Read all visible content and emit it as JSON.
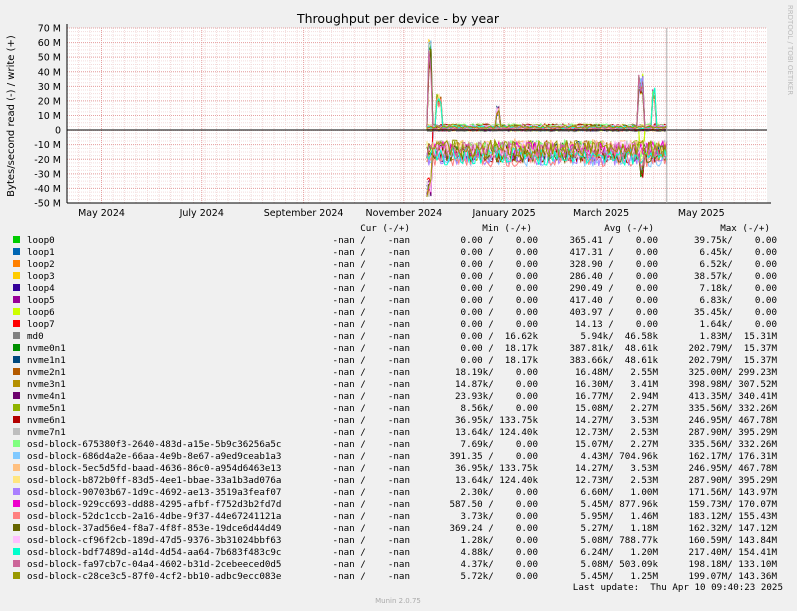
{
  "chart_data": {
    "type": "line",
    "title": "Throughput per device - by year",
    "ylabel": "Bytes/second read (-) / write (+)",
    "side_label": "RRDTOOL / TOBI OETIKER",
    "footer": "Munin 2.0.75",
    "last_update": "Last update:  Thu Apr 10 09:40:23 2025",
    "ylim": [
      -50000000,
      70000000
    ],
    "y_ticks": [
      {
        "value": 70000000,
        "label": "70 M"
      },
      {
        "value": 60000000,
        "label": "60 M"
      },
      {
        "value": 50000000,
        "label": "50 M"
      },
      {
        "value": 40000000,
        "label": "40 M"
      },
      {
        "value": 30000000,
        "label": "30 M"
      },
      {
        "value": 20000000,
        "label": "20 M"
      },
      {
        "value": 10000000,
        "label": "10 M"
      },
      {
        "value": 0,
        "label": "0"
      },
      {
        "value": -10000000,
        "label": "-10 M"
      },
      {
        "value": -20000000,
        "label": "-20 M"
      },
      {
        "value": -30000000,
        "label": "-30 M"
      },
      {
        "value": -40000000,
        "label": "-40 M"
      },
      {
        "value": -50000000,
        "label": "-50 M"
      }
    ],
    "x_range": [
      "2024-04-10",
      "2025-06-10"
    ],
    "x_ticks": [
      {
        "value": "2024-05-01",
        "label": "May 2024"
      },
      {
        "value": "2024-07-01",
        "label": "July 2024"
      },
      {
        "value": "2024-09-01",
        "label": "September 2024"
      },
      {
        "value": "2024-11-01",
        "label": "November 2024"
      },
      {
        "value": "2025-01-01",
        "label": "January 2025"
      },
      {
        "value": "2025-03-01",
        "label": "March 2025"
      },
      {
        "value": "2025-05-01",
        "label": "May 2025"
      }
    ],
    "data_start": "2024-11-15",
    "data_end": "2025-04-10",
    "spikes": [
      {
        "date": "2024-11-17",
        "value": 62000000
      },
      {
        "date": "2024-11-22",
        "value": 25000000
      },
      {
        "date": "2024-12-28",
        "value": 17000000
      },
      {
        "date": "2025-03-25",
        "value": 40000000
      },
      {
        "date": "2025-04-02",
        "value": 30000000
      },
      {
        "date": "2024-11-16",
        "value": -46000000
      },
      {
        "date": "2025-03-26",
        "value": -33000000
      }
    ],
    "columns": {
      "cur": "Cur (-/+)",
      "min": "Min (-/+)",
      "avg": "Avg (-/+)",
      "max": "Max (-/+)"
    },
    "series": [
      {
        "name": "loop0",
        "color": "#00cc00",
        "cur": "-nan /    -nan",
        "min": "0.00 /    0.00",
        "avg": "365.41 /    0.00",
        "max": "39.75k/    0.00"
      },
      {
        "name": "loop1",
        "color": "#0066b3",
        "cur": "-nan /    -nan",
        "min": "0.00 /    0.00",
        "avg": "417.31 /    0.00",
        "max": "6.45k/    0.00"
      },
      {
        "name": "loop2",
        "color": "#ff8000",
        "cur": "-nan /    -nan",
        "min": "0.00 /    0.00",
        "avg": "328.90 /    0.00",
        "max": "6.52k/    0.00"
      },
      {
        "name": "loop3",
        "color": "#ffcc00",
        "cur": "-nan /    -nan",
        "min": "0.00 /    0.00",
        "avg": "286.40 /    0.00",
        "max": "38.57k/    0.00"
      },
      {
        "name": "loop4",
        "color": "#330099",
        "cur": "-nan /    -nan",
        "min": "0.00 /    0.00",
        "avg": "290.49 /    0.00",
        "max": "7.18k/    0.00"
      },
      {
        "name": "loop5",
        "color": "#990099",
        "cur": "-nan /    -nan",
        "min": "0.00 /    0.00",
        "avg": "417.40 /    0.00",
        "max": "6.83k/    0.00"
      },
      {
        "name": "loop6",
        "color": "#ccff00",
        "cur": "-nan /    -nan",
        "min": "0.00 /    0.00",
        "avg": "403.97 /    0.00",
        "max": "35.45k/    0.00"
      },
      {
        "name": "loop7",
        "color": "#ff0000",
        "cur": "-nan /    -nan",
        "min": "0.00 /    0.00",
        "avg": "14.13 /    0.00",
        "max": "1.64k/    0.00"
      },
      {
        "name": "md0",
        "color": "#808080",
        "cur": "-nan /    -nan",
        "min": "0.00 /  16.62k",
        "avg": "5.94k/  46.58k",
        "max": "1.83M/  15.31M"
      },
      {
        "name": "nvme0n1",
        "color": "#008f00",
        "cur": "-nan /    -nan",
        "min": "0.00 /  18.17k",
        "avg": "387.81k/  48.61k",
        "max": "202.79M/  15.37M"
      },
      {
        "name": "nvme1n1",
        "color": "#00487d",
        "cur": "-nan /    -nan",
        "min": "0.00 /  18.17k",
        "avg": "383.66k/  48.61k",
        "max": "202.79M/  15.37M"
      },
      {
        "name": "nvme2n1",
        "color": "#b35a00",
        "cur": "-nan /    -nan",
        "min": "18.19k/    0.00",
        "avg": "16.48M/   2.55M",
        "max": "325.00M/ 299.23M"
      },
      {
        "name": "nvme3n1",
        "color": "#b38f00",
        "cur": "-nan /    -nan",
        "min": "14.87k/    0.00",
        "avg": "16.30M/   3.41M",
        "max": "398.98M/ 307.52M"
      },
      {
        "name": "nvme4n1",
        "color": "#6b006b",
        "cur": "-nan /    -nan",
        "min": "23.93k/    0.00",
        "avg": "16.77M/   2.94M",
        "max": "413.35M/ 340.41M"
      },
      {
        "name": "nvme5n1",
        "color": "#8fb300",
        "cur": "-nan /    -nan",
        "min": "8.56k/    0.00",
        "avg": "15.08M/   2.27M",
        "max": "335.56M/ 332.26M"
      },
      {
        "name": "nvme6n1",
        "color": "#b30000",
        "cur": "-nan /    -nan",
        "min": "36.95k/ 133.75k",
        "avg": "14.27M/   3.53M",
        "max": "246.95M/ 467.78M"
      },
      {
        "name": "nvme7n1",
        "color": "#bebebe",
        "cur": "-nan /    -nan",
        "min": "13.64k/ 124.40k",
        "avg": "12.73M/   2.53M",
        "max": "287.90M/ 395.29M"
      },
      {
        "name": "osd-block-675380f3-2640-483d-a15e-5b9c36256a5c",
        "color": "#80ff80",
        "cur": "-nan /    -nan",
        "min": "7.69k/    0.00",
        "avg": "15.07M/   2.27M",
        "max": "335.56M/ 332.26M"
      },
      {
        "name": "osd-block-686d4a2e-66aa-4e9b-8e67-a9ed9ceab1a3",
        "color": "#80c9ff",
        "cur": "-nan /    -nan",
        "min": "391.35 /    0.00",
        "avg": "4.43M/ 704.96k",
        "max": "162.17M/ 176.31M"
      },
      {
        "name": "osd-block-5ec5d5fd-baad-4636-86c0-a954d6463e13",
        "color": "#ffc080",
        "cur": "-nan /    -nan",
        "min": "36.95k/ 133.75k",
        "avg": "14.27M/   3.53M",
        "max": "246.95M/ 467.78M"
      },
      {
        "name": "osd-block-b872b0ff-83d5-4ee1-bbae-33a1b3ad076a",
        "color": "#ffe680",
        "cur": "-nan /    -nan",
        "min": "13.64k/ 124.40k",
        "avg": "12.73M/   2.53M",
        "max": "287.90M/ 395.29M"
      },
      {
        "name": "osd-block-90703b67-1d9c-4692-ae13-3519a3feaf07",
        "color": "#aa80ff",
        "cur": "-nan /    -nan",
        "min": "2.30k/    0.00",
        "avg": "6.60M/   1.00M",
        "max": "171.56M/ 143.97M"
      },
      {
        "name": "osd-block-929cc693-dd88-4295-afbf-f752d3b2fd7d",
        "color": "#ee00cc",
        "cur": "-nan /    -nan",
        "min": "587.50 /    0.00",
        "avg": "5.45M/ 877.96k",
        "max": "159.73M/ 170.07M"
      },
      {
        "name": "osd-block-52dc1ccb-2a16-4dbe-9f37-44e67241121a",
        "color": "#ff8080",
        "cur": "-nan /    -nan",
        "min": "3.73k/    0.00",
        "avg": "5.95M/   1.46M",
        "max": "183.12M/ 155.43M"
      },
      {
        "name": "osd-block-37ad56e4-f8a7-4f8f-853e-19dce6d44d49",
        "color": "#666600",
        "cur": "-nan /    -nan",
        "min": "369.24 /    0.00",
        "avg": "5.27M/   1.18M",
        "max": "162.32M/ 147.12M"
      },
      {
        "name": "osd-block-cf96f2cb-189d-47d5-9376-3b31024bbf63",
        "color": "#ffbfff",
        "cur": "-nan /    -nan",
        "min": "1.28k/    0.00",
        "avg": "5.08M/ 788.77k",
        "max": "160.59M/ 143.84M"
      },
      {
        "name": "osd-block-bdf7489d-a14d-4d54-aa64-7b683f483c9c",
        "color": "#00ffcc",
        "cur": "-nan /    -nan",
        "min": "4.88k/    0.00",
        "avg": "6.24M/   1.20M",
        "max": "217.40M/ 154.41M"
      },
      {
        "name": "osd-block-fa97cb7c-04a4-4602-b31d-2cebeeced0d5",
        "color": "#cc6699",
        "cur": "-nan /    -nan",
        "min": "4.37k/    0.00",
        "avg": "5.08M/ 503.09k",
        "max": "198.18M/ 133.10M"
      },
      {
        "name": "osd-block-c28ce3c5-87f0-4cf2-bb10-adbc9ecc083e",
        "color": "#999900",
        "cur": "-nan /    -nan",
        "min": "5.72k/    0.00",
        "avg": "5.45M/   1.25M",
        "max": "199.07M/ 143.36M"
      }
    ]
  }
}
